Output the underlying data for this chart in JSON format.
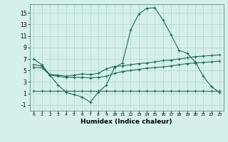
{
  "xlabel": "Humidex (Indice chaleur)",
  "background_color": "#d5f0ec",
  "grid_color": "#b8d8d4",
  "line_color": "#1a6b5a",
  "xlim": [
    -0.5,
    23.5
  ],
  "ylim": [
    -2,
    16.5
  ],
  "yticks": [
    -1,
    1,
    3,
    5,
    7,
    9,
    11,
    13,
    15
  ],
  "xticks": [
    0,
    1,
    2,
    3,
    4,
    5,
    6,
    7,
    8,
    9,
    10,
    11,
    12,
    13,
    14,
    15,
    16,
    17,
    18,
    19,
    20,
    21,
    22,
    23
  ],
  "xtick_labels": [
    "0",
    "1",
    "2",
    "3",
    "4",
    "5",
    "6",
    "7",
    "8",
    "9",
    "10",
    "11",
    "12",
    "13",
    "14",
    "15",
    "16",
    "17",
    "18",
    "19",
    "20",
    "21",
    "22",
    "23"
  ],
  "series": [
    {
      "x": [
        0,
        1,
        2,
        3,
        4,
        5,
        6,
        7,
        8,
        9,
        10,
        11,
        12,
        13,
        14,
        15,
        16,
        17,
        18,
        19,
        20,
        21,
        22,
        23
      ],
      "y": [
        7.0,
        6.0,
        4.2,
        2.5,
        1.2,
        0.8,
        0.4,
        -0.5,
        1.2,
        2.5,
        5.5,
        6.3,
        12.0,
        14.8,
        15.8,
        15.9,
        13.8,
        11.2,
        8.5,
        8.0,
        6.5,
        4.0,
        2.2,
        1.2
      ]
    },
    {
      "x": [
        0,
        1,
        2,
        3,
        4,
        5,
        6,
        7,
        8,
        9,
        10,
        11,
        12,
        13,
        14,
        15,
        16,
        17,
        18,
        19,
        20,
        21,
        22,
        23
      ],
      "y": [
        6.0,
        5.8,
        4.3,
        4.2,
        4.0,
        4.2,
        4.4,
        4.3,
        4.5,
        5.3,
        5.7,
        5.8,
        6.0,
        6.2,
        6.3,
        6.5,
        6.7,
        6.8,
        7.0,
        7.2,
        7.4,
        7.5,
        7.6,
        7.7
      ]
    },
    {
      "x": [
        0,
        1,
        2,
        3,
        4,
        5,
        6,
        7,
        8,
        9,
        10,
        11,
        12,
        13,
        14,
        15,
        16,
        17,
        18,
        19,
        20,
        21,
        22,
        23
      ],
      "y": [
        5.5,
        5.5,
        4.2,
        4.0,
        3.8,
        3.8,
        3.8,
        3.7,
        3.8,
        4.0,
        4.5,
        4.8,
        5.0,
        5.2,
        5.4,
        5.5,
        5.6,
        5.8,
        6.0,
        6.2,
        6.3,
        6.4,
        6.5,
        6.6
      ]
    },
    {
      "x": [
        0,
        1,
        2,
        3,
        4,
        5,
        6,
        7,
        8,
        9,
        10,
        11,
        12,
        13,
        14,
        15,
        16,
        17,
        18,
        19,
        20,
        21,
        22,
        23
      ],
      "y": [
        1.5,
        1.5,
        1.5,
        1.5,
        1.5,
        1.5,
        1.5,
        1.5,
        1.5,
        1.5,
        1.5,
        1.5,
        1.5,
        1.5,
        1.5,
        1.5,
        1.5,
        1.5,
        1.5,
        1.5,
        1.5,
        1.5,
        1.5,
        1.5
      ]
    }
  ]
}
